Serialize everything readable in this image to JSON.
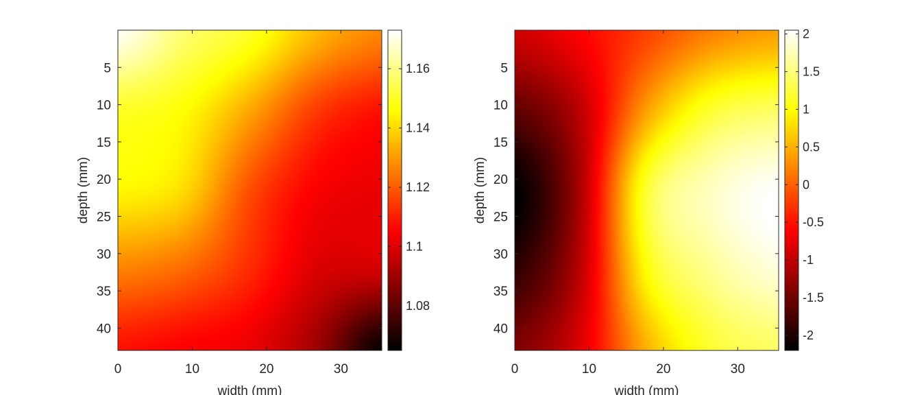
{
  "chart_data": [
    {
      "type": "heatmap",
      "xlabel": "width (mm)",
      "ylabel": "depth (mm)",
      "xlim": [
        0,
        35.5
      ],
      "ylim": [
        0,
        43
      ],
      "y_direction": "down",
      "xticks": [
        0,
        10,
        20,
        30
      ],
      "yticks": [
        5,
        10,
        15,
        20,
        25,
        30,
        35,
        40
      ],
      "colormap": "hot",
      "colorbar": {
        "range": [
          1.065,
          1.173
        ],
        "ticks": [
          "1.08",
          "1.1",
          "1.12",
          "1.14",
          "1.16"
        ],
        "tick_values": [
          1.08,
          1.1,
          1.12,
          1.14,
          1.16
        ]
      },
      "grid": {
        "x": [
          0,
          8.875,
          17.75,
          26.625,
          35.5
        ],
        "y": [
          0,
          10.75,
          21.5,
          32.25,
          43
        ],
        "z": [
          [
            1.172,
            1.158,
            1.15,
            1.135,
            1.127
          ],
          [
            1.15,
            1.146,
            1.132,
            1.115,
            1.108
          ],
          [
            1.145,
            1.14,
            1.118,
            1.105,
            1.102
          ],
          [
            1.126,
            1.122,
            1.112,
            1.1,
            1.098
          ],
          [
            1.108,
            1.105,
            1.102,
            1.09,
            1.066
          ]
        ]
      }
    },
    {
      "type": "heatmap",
      "xlabel": "width (mm)",
      "ylabel": "depth (mm)",
      "xlim": [
        0,
        35.5
      ],
      "ylim": [
        0,
        43
      ],
      "y_direction": "down",
      "xticks": [
        0,
        10,
        20,
        30
      ],
      "yticks": [
        5,
        10,
        15,
        20,
        25,
        30,
        35,
        40
      ],
      "colormap": "hot",
      "colorbar": {
        "range": [
          -2.2,
          2.05
        ],
        "ticks": [
          "2",
          "1.5",
          "1",
          "0.5",
          "0",
          "-0.5",
          "-1",
          "-1.5",
          "-2"
        ],
        "tick_values": [
          2,
          1.5,
          1,
          0.5,
          0,
          -0.5,
          -1,
          -1.5,
          -2
        ]
      },
      "grid": {
        "x": [
          0,
          8.875,
          17.75,
          26.625,
          35.5
        ],
        "y": [
          0,
          10.75,
          21.5,
          32.25,
          43
        ],
        "z": [
          [
            -0.9,
            -0.6,
            -0.2,
            0.2,
            0.4
          ],
          [
            -1.6,
            -1.0,
            0.4,
            1.2,
            1.4
          ],
          [
            -2.2,
            -1.1,
            1.2,
            1.8,
            2.05
          ],
          [
            -1.9,
            -1.0,
            1.0,
            1.6,
            1.9
          ],
          [
            -1.4,
            -0.8,
            0.5,
            1.2,
            1.4
          ]
        ]
      }
    }
  ]
}
